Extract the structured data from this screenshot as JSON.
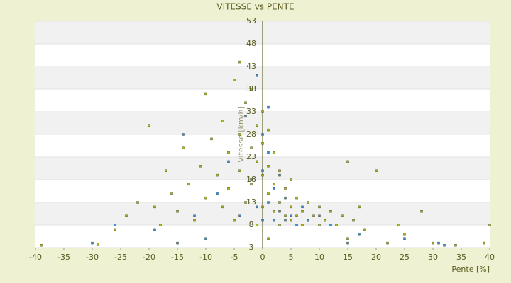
{
  "chart_data": {
    "type": "scatter",
    "title": "VITESSE vs PENTE",
    "x_label": "Pente [%]",
    "y_label": "Vitesse [km/h]",
    "xlim": [
      -40,
      40
    ],
    "xticks": [
      -40,
      -35,
      -30,
      -25,
      -20,
      -15,
      -10,
      -5,
      0,
      5,
      10,
      15,
      20,
      25,
      30,
      35,
      40
    ],
    "ylim": [
      3,
      53
    ],
    "yticks": [
      3,
      8,
      13,
      18,
      23,
      28,
      33,
      38,
      43,
      48,
      53
    ],
    "grid": true,
    "series": [
      {
        "color": "#a8b418",
        "x": [
          -39,
          -29,
          -26,
          -24,
          -22,
          -20,
          -19,
          -18,
          -17,
          -16,
          -15,
          -14,
          -13,
          -12,
          -11,
          -10,
          -10,
          -9,
          -8,
          -7,
          -7,
          -6,
          -6,
          -5,
          -5,
          -4,
          -4,
          -4,
          -3,
          -3,
          -2,
          -2,
          -2,
          -1,
          -1,
          -1,
          0,
          0,
          0,
          0,
          1,
          1,
          1,
          1,
          2,
          2,
          2,
          3,
          3,
          3,
          4,
          4,
          5,
          5,
          5,
          6,
          6,
          7,
          7,
          8,
          8,
          9,
          10,
          10,
          11,
          12,
          13,
          14,
          15,
          15,
          16,
          17,
          18,
          20,
          22,
          24,
          25,
          28,
          30,
          34,
          39,
          40
        ],
        "y": [
          3.5,
          3.8,
          7,
          10,
          13,
          30,
          12,
          8,
          20,
          15,
          11,
          25,
          17,
          9,
          21,
          37,
          14,
          27,
          19,
          12,
          31,
          24,
          16,
          40,
          9,
          44,
          28,
          20,
          35,
          13,
          38,
          25,
          17,
          30,
          22,
          8,
          33,
          26,
          19,
          12,
          29,
          21,
          15,
          5,
          24,
          17,
          11,
          20,
          13,
          8,
          16,
          10,
          18,
          12,
          9,
          14,
          10,
          11,
          8,
          13,
          9,
          10,
          12,
          8,
          9,
          11,
          8,
          10,
          22,
          5,
          9,
          12,
          7,
          20,
          4,
          8,
          6,
          11,
          4,
          3.5,
          4,
          8
        ]
      },
      {
        "color": "#3b8fd9",
        "x": [
          -30,
          -26,
          -19,
          -15,
          -14,
          -12,
          -10,
          -8,
          -6,
          -4,
          -3,
          -2,
          -1,
          -1,
          0,
          0,
          0,
          1,
          1,
          1,
          2,
          2,
          3,
          3,
          4,
          4,
          5,
          6,
          7,
          8,
          10,
          12,
          15,
          17,
          25,
          31,
          32
        ],
        "y": [
          4,
          8,
          7,
          4,
          28,
          10,
          5,
          15,
          22,
          10,
          32,
          18,
          41,
          12,
          28,
          20,
          9,
          34,
          24,
          13,
          16,
          9,
          19,
          11,
          9,
          14,
          10,
          8,
          12,
          9,
          10,
          8,
          4,
          6,
          5,
          4,
          3.5
        ]
      }
    ]
  }
}
